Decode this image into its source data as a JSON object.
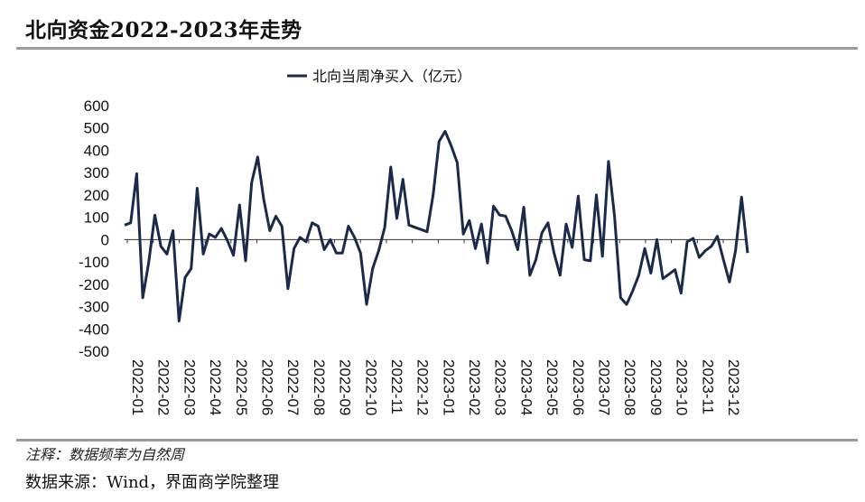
{
  "header": {
    "title": "北向资金2022-2023年走势"
  },
  "footer": {
    "note": "注释：数据频率为自然周",
    "source": "数据来源：Wind，界面商学院整理"
  },
  "colors": {
    "series": "#1b2a4a",
    "rule": "#9a9a9a"
  },
  "chart_data": {
    "type": "line",
    "legend": {
      "position": "top-center"
    },
    "ylim": [
      -500,
      600
    ],
    "yticks": [
      600,
      500,
      400,
      300,
      200,
      100,
      0,
      -100,
      -200,
      -300,
      -400,
      -500
    ],
    "xticks": [
      "2022-01",
      "2022-02",
      "2022-03",
      "2022-04",
      "2022-05",
      "2022-06",
      "2022-07",
      "2022-08",
      "2022-09",
      "2022-10",
      "2022-11",
      "2022-12",
      "2023-01",
      "2023-02",
      "2023-03",
      "2023-04",
      "2023-05",
      "2023-06",
      "2023-07",
      "2023-08",
      "2023-09",
      "2023-10",
      "2023-11",
      "2023-12"
    ],
    "grid": false,
    "series": [
      {
        "name": "北向当周净买入（亿元）",
        "values": [
          65,
          75,
          295,
          -260,
          -100,
          110,
          -30,
          -65,
          40,
          -365,
          -170,
          -130,
          230,
          -65,
          25,
          10,
          50,
          -5,
          -70,
          155,
          -95,
          255,
          370,
          180,
          40,
          105,
          60,
          -220,
          -40,
          10,
          -10,
          75,
          60,
          -45,
          0,
          -60,
          -60,
          60,
          10,
          -60,
          -290,
          -130,
          -50,
          55,
          325,
          95,
          270,
          65,
          55,
          45,
          35,
          200,
          440,
          485,
          420,
          345,
          25,
          85,
          -40,
          70,
          -105,
          150,
          110,
          105,
          40,
          -45,
          145,
          -160,
          -90,
          30,
          75,
          -60,
          -160,
          70,
          -35,
          195,
          -90,
          -95,
          200,
          -75,
          350,
          105,
          -260,
          -290,
          -230,
          -160,
          -40,
          -150,
          0,
          -175,
          -155,
          -135,
          -240,
          -10,
          5,
          -80,
          -50,
          -30,
          15,
          -90,
          -190,
          -50,
          190,
          -60
        ]
      }
    ]
  }
}
